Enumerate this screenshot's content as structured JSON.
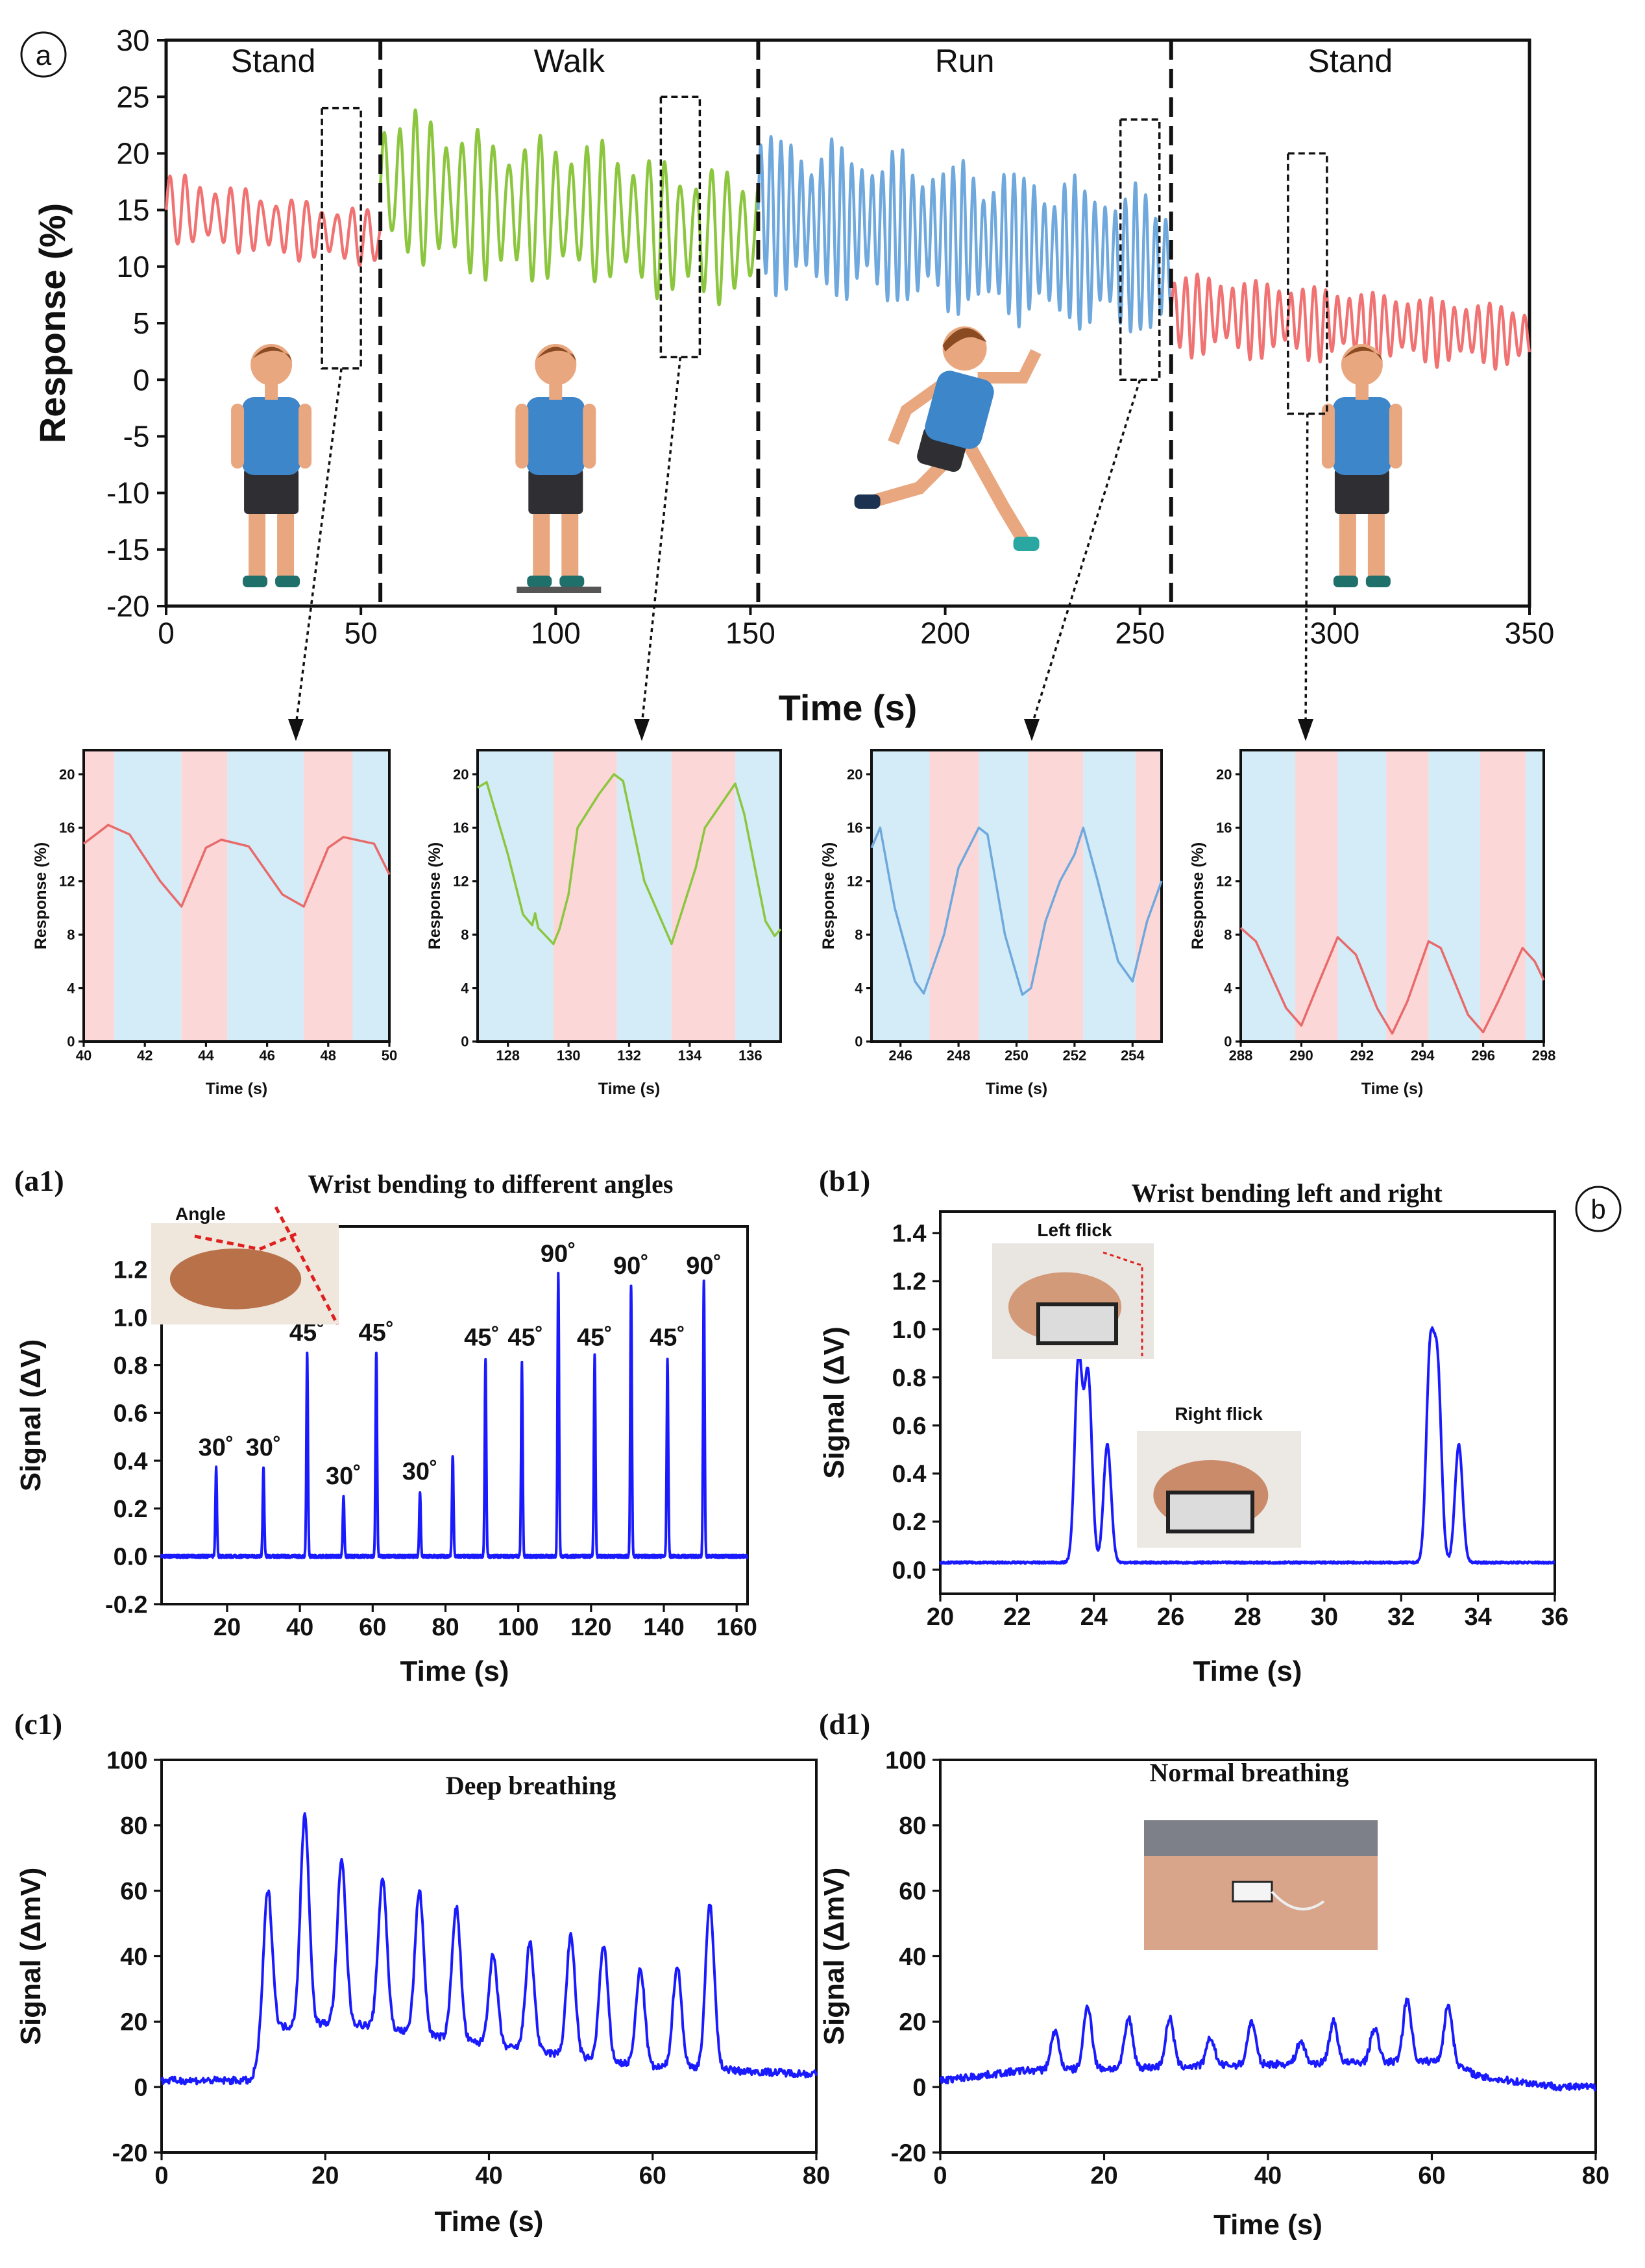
{
  "panel_labels": {
    "a": "a",
    "b": "b",
    "a1": "(a1)",
    "b1": "(b1)",
    "c1": "(c1)",
    "d1": "(d1)"
  },
  "chart_data": [
    {
      "type": "line",
      "xlabel": "Time (s)",
      "ylabel": "Response (%)",
      "xlim": [
        0,
        350
      ],
      "ylim": [
        -20,
        30
      ],
      "xticks": [
        0,
        50,
        100,
        150,
        200,
        250,
        300,
        350
      ],
      "yticks": [
        -20,
        -15,
        -10,
        -5,
        0,
        5,
        10,
        15,
        20,
        25,
        30
      ],
      "dividers": [
        55,
        152,
        258
      ],
      "phases": [
        {
          "label": "Stand",
          "start": 0,
          "end": 55,
          "color": "#f07272",
          "center": [
            15,
            12.5
          ],
          "amp": [
            3.2,
            2.5
          ],
          "period": 3.9
        },
        {
          "label": "Walk",
          "start": 55,
          "end": 152,
          "color": "#8cc63f",
          "center": [
            17,
            12.5
          ],
          "amp": [
            7,
            6
          ],
          "period": 4.0
        },
        {
          "label": "Run",
          "start": 152,
          "end": 258,
          "color": "#6fa8dc",
          "center": [
            15,
            10
          ],
          "amp": [
            7,
            6.5
          ],
          "period": 2.6
        },
        {
          "label": "Stand",
          "start": 258,
          "end": 350,
          "color": "#f07272",
          "center": [
            6,
            3.8
          ],
          "amp": [
            3.8,
            2.8
          ],
          "period": 3.0
        }
      ],
      "zoom_boxes": [
        {
          "x": [
            40,
            50
          ],
          "y": [
            1,
            24
          ]
        },
        {
          "x": [
            127,
            137
          ],
          "y": [
            2,
            25
          ]
        },
        {
          "x": [
            245,
            255
          ],
          "y": [
            0,
            23
          ]
        },
        {
          "x": [
            288,
            298
          ],
          "y": [
            -3,
            20
          ]
        }
      ]
    },
    {
      "type": "line",
      "xlabel": "Time (s)",
      "ylabel": "Response (%)",
      "color": "#e86a6a",
      "xlim": [
        40,
        50
      ],
      "ylim": [
        0,
        21.8
      ],
      "xticks": [
        40,
        42,
        44,
        46,
        48,
        50
      ],
      "yticks": [
        0,
        4,
        8,
        12,
        16,
        20
      ],
      "bands": [
        [
          "pink",
          40,
          41
        ],
        [
          "blue",
          41,
          43.2
        ],
        [
          "pink",
          43.2,
          44.7
        ],
        [
          "blue",
          44.7,
          47.2
        ],
        [
          "pink",
          47.2,
          48.8
        ],
        [
          "blue",
          48.8,
          50
        ]
      ],
      "points": [
        [
          40,
          14.8
        ],
        [
          40.8,
          16.2
        ],
        [
          41.5,
          15.5
        ],
        [
          42.5,
          12
        ],
        [
          43.2,
          10.1
        ],
        [
          44,
          14.5
        ],
        [
          44.5,
          15.1
        ],
        [
          45.4,
          14.6
        ],
        [
          46.5,
          11
        ],
        [
          47.2,
          10.1
        ],
        [
          48,
          14.5
        ],
        [
          48.5,
          15.3
        ],
        [
          49.5,
          14.8
        ],
        [
          50,
          12.5
        ]
      ]
    },
    {
      "type": "line",
      "xlabel": "Time (s)",
      "ylabel": "Response (%)",
      "color": "#8cc63f",
      "xlim": [
        127,
        137
      ],
      "ylim": [
        0,
        21.8
      ],
      "xticks": [
        128,
        130,
        132,
        134,
        136
      ],
      "yticks": [
        0,
        4,
        8,
        12,
        16,
        20
      ],
      "bands": [
        [
          "blue",
          127,
          129.5
        ],
        [
          "pink",
          129.5,
          131.6
        ],
        [
          "blue",
          131.6,
          133.4
        ],
        [
          "pink",
          133.4,
          135.5
        ],
        [
          "blue",
          135.5,
          137
        ]
      ],
      "points": [
        [
          127,
          19
        ],
        [
          127.3,
          19.4
        ],
        [
          128,
          14
        ],
        [
          128.5,
          9.5
        ],
        [
          128.8,
          8.7
        ],
        [
          128.9,
          9.6
        ],
        [
          129,
          8.5
        ],
        [
          129.5,
          7.3
        ],
        [
          129.7,
          8.4
        ],
        [
          130,
          11
        ],
        [
          130.3,
          16
        ],
        [
          131,
          18.5
        ],
        [
          131.5,
          20
        ],
        [
          131.8,
          19.5
        ],
        [
          132.5,
          12
        ],
        [
          133.4,
          7.3
        ],
        [
          134.2,
          13
        ],
        [
          134.5,
          16
        ],
        [
          135.5,
          19.3
        ],
        [
          135.8,
          17
        ],
        [
          136.5,
          9
        ],
        [
          136.8,
          7.9
        ],
        [
          137,
          8.4
        ]
      ]
    },
    {
      "type": "line",
      "xlabel": "Time (s)",
      "ylabel": "Response (%)",
      "color": "#6fa8dc",
      "xlim": [
        245,
        255
      ],
      "ylim": [
        0,
        21.8
      ],
      "xticks": [
        246,
        248,
        250,
        252,
        254
      ],
      "yticks": [
        0,
        4,
        8,
        12,
        16,
        20
      ],
      "bands": [
        [
          "blue",
          245,
          247
        ],
        [
          "pink",
          247,
          248.7
        ],
        [
          "blue",
          248.7,
          250.4
        ],
        [
          "pink",
          250.4,
          252.3
        ],
        [
          "blue",
          252.3,
          254.1
        ],
        [
          "pink",
          254.1,
          255
        ]
      ],
      "points": [
        [
          245,
          14.5
        ],
        [
          245.3,
          16
        ],
        [
          245.8,
          10
        ],
        [
          246.5,
          4.5
        ],
        [
          246.8,
          3.6
        ],
        [
          247.5,
          8
        ],
        [
          248,
          13
        ],
        [
          248.7,
          16
        ],
        [
          249,
          15.5
        ],
        [
          249.6,
          8
        ],
        [
          250.2,
          3.5
        ],
        [
          250.5,
          4
        ],
        [
          251,
          9
        ],
        [
          251.5,
          12
        ],
        [
          252,
          14
        ],
        [
          252.3,
          16
        ],
        [
          252.8,
          12
        ],
        [
          253.5,
          6
        ],
        [
          254,
          4.5
        ],
        [
          254.5,
          9
        ],
        [
          255,
          12
        ]
      ]
    },
    {
      "type": "line",
      "xlabel": "Time (s)",
      "ylabel": "Response (%)",
      "color": "#e86a6a",
      "xlim": [
        288,
        298
      ],
      "ylim": [
        0,
        21.8
      ],
      "xticks": [
        288,
        290,
        292,
        294,
        296,
        298
      ],
      "yticks": [
        0,
        4,
        8,
        12,
        16,
        20
      ],
      "bands": [
        [
          "blue",
          288,
          289.8
        ],
        [
          "pink",
          289.8,
          291.2
        ],
        [
          "blue",
          291.2,
          292.8
        ],
        [
          "pink",
          292.8,
          294.2
        ],
        [
          "blue",
          294.2,
          295.9
        ],
        [
          "pink",
          295.9,
          297.4
        ],
        [
          "blue",
          297.4,
          298
        ]
      ],
      "points": [
        [
          288,
          8.5
        ],
        [
          288.5,
          7.5
        ],
        [
          289.5,
          2.5
        ],
        [
          290,
          1.2
        ],
        [
          290.5,
          4
        ],
        [
          291.2,
          7.8
        ],
        [
          291.8,
          6.5
        ],
        [
          292.5,
          2.5
        ],
        [
          293,
          0.6
        ],
        [
          293.5,
          3
        ],
        [
          294.2,
          7.5
        ],
        [
          294.6,
          7
        ],
        [
          295.5,
          2
        ],
        [
          296,
          0.7
        ],
        [
          296.5,
          3
        ],
        [
          297.3,
          7
        ],
        [
          297.7,
          6
        ],
        [
          298,
          4.6
        ]
      ]
    },
    {
      "type": "line",
      "title": "Wrist bending to different angles",
      "xlabel": "Time (s)",
      "ylabel": "Signal (ΔV)",
      "color": "#1a1aff",
      "xlim": [
        2,
        163
      ],
      "ylim": [
        -0.2,
        1.38
      ],
      "xticks": [
        20,
        40,
        60,
        80,
        100,
        120,
        140,
        160
      ],
      "yticks": [
        -0.2,
        0.0,
        0.2,
        0.4,
        0.6,
        0.8,
        1.0,
        1.2
      ],
      "ytick_labels": [
        "-0.2",
        "0.0",
        "0.2",
        "0.4",
        "0.6",
        "0.8",
        "1.0",
        "1.2"
      ],
      "baseline": 0.0,
      "width": 0.3,
      "peaks": [
        [
          17,
          0.37
        ],
        [
          30,
          0.37
        ],
        [
          42,
          0.85
        ],
        [
          52,
          0.25
        ],
        [
          61,
          0.85
        ],
        [
          73,
          0.27
        ],
        [
          82,
          0.42
        ],
        [
          91,
          0.82
        ],
        [
          101,
          0.81
        ],
        [
          111,
          1.18
        ],
        [
          121,
          0.84
        ],
        [
          131,
          1.13
        ],
        [
          141,
          0.82
        ],
        [
          151,
          1.15
        ]
      ],
      "annotations": [
        {
          "text": "30˚",
          "x": 17,
          "y": 0.4
        },
        {
          "text": "30˚",
          "x": 30,
          "y": 0.4
        },
        {
          "text": "45˚",
          "x": 42,
          "y": 0.88
        },
        {
          "text": "30˚",
          "x": 52,
          "y": 0.28
        },
        {
          "text": "45˚",
          "x": 61,
          "y": 0.88
        },
        {
          "text": "30˚",
          "x": 73,
          "y": 0.3
        },
        {
          "text": "45˚",
          "x": 90,
          "y": 0.86
        },
        {
          "text": "45˚",
          "x": 102,
          "y": 0.86
        },
        {
          "text": "90˚",
          "x": 111,
          "y": 1.21
        },
        {
          "text": "45˚",
          "x": 121,
          "y": 0.86
        },
        {
          "text": "90˚",
          "x": 131,
          "y": 1.16
        },
        {
          "text": "45˚",
          "x": 141,
          "y": 0.86
        },
        {
          "text": "90˚",
          "x": 151,
          "y": 1.16
        }
      ],
      "photo_label": "Angle"
    },
    {
      "type": "line",
      "title": "Wrist bending left and right",
      "xlabel": "Time (s)",
      "ylabel": "Signal (ΔV)",
      "color": "#1a1aff",
      "xlim": [
        20,
        36
      ],
      "ylim": [
        -0.1,
        1.49
      ],
      "xticks": [
        20,
        22,
        24,
        26,
        28,
        30,
        32,
        34,
        36
      ],
      "yticks": [
        0.0,
        0.2,
        0.4,
        0.6,
        0.8,
        1.0,
        1.2,
        1.4
      ],
      "ytick_labels": [
        "0.0",
        "0.2",
        "0.4",
        "0.6",
        "0.8",
        "1.0",
        "1.2",
        "1.4"
      ],
      "baseline": 0.03,
      "width": 0.14,
      "peaks": [
        [
          23.6,
          0.87
        ],
        [
          23.85,
          0.8
        ],
        [
          24.35,
          0.52
        ],
        [
          32.75,
          0.86
        ],
        [
          32.95,
          0.8
        ],
        [
          33.5,
          0.52
        ]
      ],
      "photo_labels": [
        "Left flick",
        "Right flick"
      ]
    },
    {
      "type": "line",
      "title": "Deep breathing",
      "xlabel": "Time (s)",
      "ylabel": "Signal (ΔmV)",
      "color": "#1a1aff",
      "xlim": [
        0,
        80
      ],
      "ylim": [
        -20,
        100
      ],
      "xticks": [
        0,
        20,
        40,
        60,
        80
      ],
      "yticks": [
        -20,
        0,
        20,
        40,
        60,
        80,
        100
      ],
      "width": 0.75,
      "baseline_points": [
        [
          0,
          2
        ],
        [
          11,
          2
        ],
        [
          13,
          18
        ],
        [
          22,
          20
        ],
        [
          40,
          13
        ],
        [
          60,
          6
        ],
        [
          68,
          6
        ],
        [
          70,
          5
        ],
        [
          80,
          4
        ]
      ],
      "peaks": [
        [
          13,
          60
        ],
        [
          17.5,
          83
        ],
        [
          22,
          69
        ],
        [
          27,
          64
        ],
        [
          31.5,
          60
        ],
        [
          36,
          55
        ],
        [
          40.5,
          40
        ],
        [
          45,
          44
        ],
        [
          50,
          46
        ],
        [
          54,
          43
        ],
        [
          58.5,
          36
        ],
        [
          63,
          37
        ],
        [
          67,
          56
        ]
      ]
    },
    {
      "type": "line",
      "title": "Normal breathing",
      "xlabel": "Time (s)",
      "ylabel": "Signal (ΔmV)",
      "color": "#1a1aff",
      "xlim": [
        0,
        80
      ],
      "ylim": [
        -20,
        100
      ],
      "xticks": [
        0,
        20,
        40,
        60,
        80
      ],
      "yticks": [
        -20,
        0,
        20,
        40,
        60,
        80,
        100
      ],
      "width": 0.7,
      "baseline_points": [
        [
          0,
          2
        ],
        [
          10,
          5
        ],
        [
          40,
          7
        ],
        [
          62,
          8
        ],
        [
          66,
          3
        ],
        [
          76,
          0
        ]
      ],
      "peaks": [
        [
          14,
          17
        ],
        [
          18,
          25
        ],
        [
          23,
          21
        ],
        [
          28,
          21
        ],
        [
          33,
          15
        ],
        [
          38,
          20
        ],
        [
          44,
          14
        ],
        [
          48,
          20
        ],
        [
          53,
          18
        ],
        [
          57,
          27
        ],
        [
          62,
          25
        ]
      ]
    }
  ]
}
